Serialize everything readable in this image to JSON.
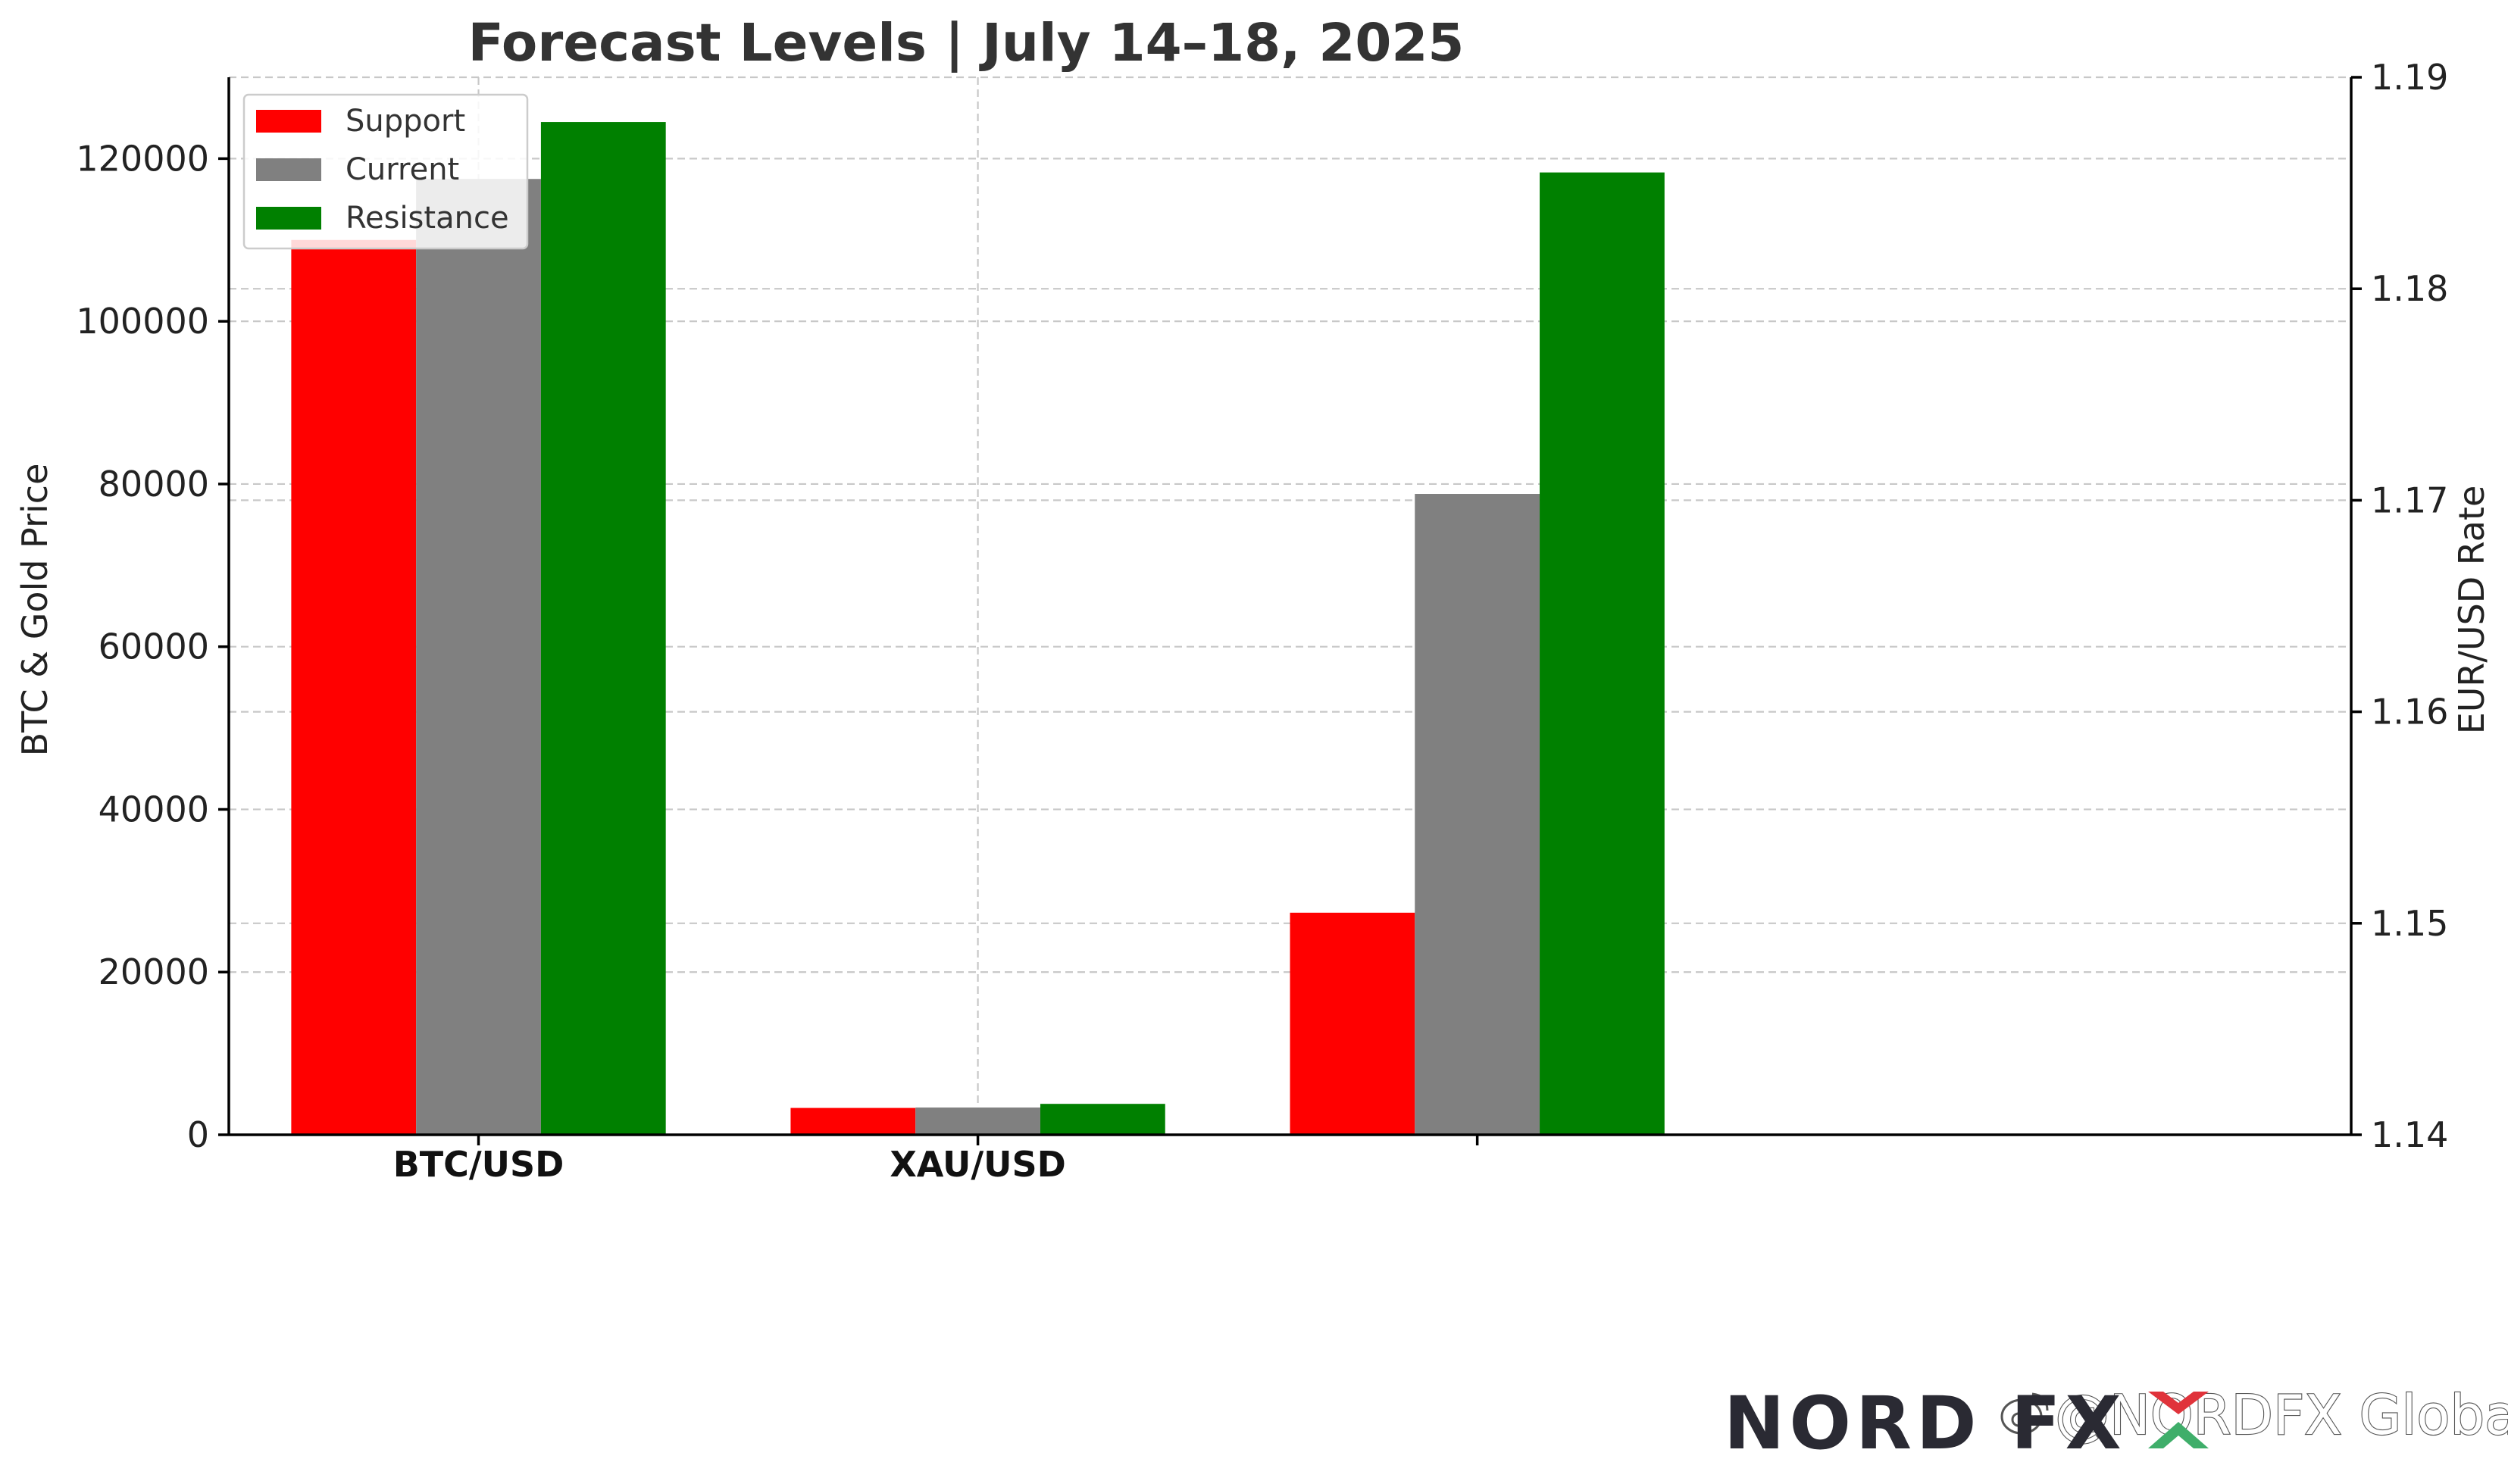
{
  "chart_data": {
    "type": "bar",
    "title": "Forecast Levels | July 14–18, 2025",
    "categories": [
      "BTC/USD",
      "XAU/USD",
      ""
    ],
    "series": [
      {
        "name": "Support",
        "color": "#ff0000",
        "values": [
          110000,
          3300,
          1.1505
        ]
      },
      {
        "name": "Current",
        "color": "#808080",
        "values": [
          117500,
          3350,
          1.1703
        ]
      },
      {
        "name": "Resistance",
        "color": "#008000",
        "values": [
          124500,
          3800,
          1.1855
        ]
      }
    ],
    "category_axis": [
      "left",
      "left",
      "right"
    ],
    "ylabel_left": "BTC & Gold Price",
    "ylabel_right": "EUR/USD Rate",
    "ylim_left": [
      0,
      130000
    ],
    "ylim_right": [
      1.14,
      1.19
    ],
    "yticks_left": [
      "0",
      "20000",
      "40000",
      "60000",
      "80000",
      "100000",
      "120000"
    ],
    "yticks_right": [
      "1.14",
      "1.15",
      "1.16",
      "1.17",
      "1.18",
      "1.19"
    ],
    "grid": true,
    "legend_position": "top-left"
  },
  "watermark": {
    "text": "@NORDFX Global",
    "icon": "weibo-icon"
  },
  "logo": {
    "text": "NORD FX",
    "accent_colors": [
      "#e0333b",
      "#3fae6a"
    ]
  }
}
